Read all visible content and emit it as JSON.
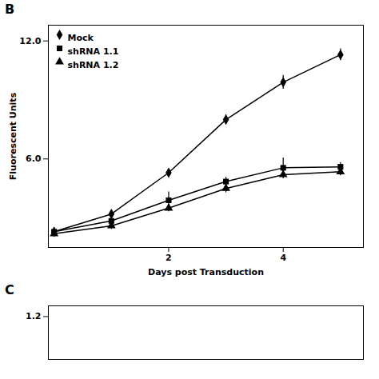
{
  "chart_data": [
    {
      "type": "line",
      "title": "B",
      "xlabel": "Days post Transduction",
      "ylabel": "Fluorescent Units",
      "xlim": [
        -0.1,
        5.4
      ],
      "ylim": [
        1.5,
        12.8
      ],
      "xticks": [
        2,
        4
      ],
      "yticks": [
        {
          "value": 6.0,
          "label": "6.0"
        },
        {
          "value": 12.0,
          "label": "12.0"
        }
      ],
      "legend": "upper left",
      "series": [
        {
          "name": "Mock",
          "marker": "diamond",
          "color": "#000000",
          "x": [
            0,
            1,
            2,
            3,
            4,
            5
          ],
          "values": [
            2.3,
            3.2,
            5.3,
            8.0,
            9.9,
            11.3
          ],
          "yerr": [
            0.12,
            0.18,
            0.18,
            0.25,
            0.35,
            0.3
          ]
        },
        {
          "name": "shRNA 1.1",
          "marker": "square",
          "color": "#000000",
          "x": [
            0,
            1,
            2,
            3,
            4,
            5
          ],
          "values": [
            2.3,
            2.85,
            3.9,
            4.85,
            5.55,
            5.6
          ],
          "yerr": [
            0.12,
            0.3,
            0.42,
            0.22,
            0.5,
            0.22
          ]
        },
        {
          "name": "shRNA 1.2",
          "marker": "triangle",
          "color": "#000000",
          "x": [
            0,
            1,
            2,
            3,
            4,
            5
          ],
          "values": [
            2.2,
            2.6,
            3.5,
            4.5,
            5.2,
            5.35
          ],
          "yerr": [
            0.12,
            0.18,
            0.18,
            0.22,
            0.2,
            0.2
          ]
        }
      ]
    },
    {
      "type": "line",
      "title": "C",
      "xlim": [
        0,
        5.4
      ],
      "ylim": [
        0.8,
        1.3
      ],
      "yticks": [
        1.2
      ],
      "tick_labels": "y",
      "series": []
    }
  ]
}
